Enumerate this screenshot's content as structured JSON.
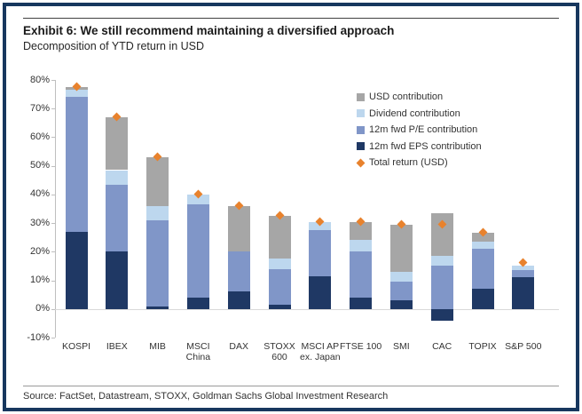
{
  "header": {
    "title": "Exhibit 6: We still recommend maintaining a diversified approach",
    "subtitle": "Decomposition of YTD return in USD"
  },
  "footer": {
    "source": "Source: FactSet, Datastream, STOXX, Goldman Sachs Global Investment Research"
  },
  "colors": {
    "frame_border": "#17375e",
    "usd_contribution": "#a6a6a6",
    "dividend_contribution": "#bdd7ee",
    "pe_contribution": "#8096c8",
    "eps_contribution": "#1f3864",
    "total_marker": "#e8822d",
    "axis_line": "#bfbfbf",
    "zero_line": "#d9d9d9"
  },
  "legend": {
    "items": [
      {
        "label": "USD contribution",
        "color": "#a6a6a6",
        "shape": "square"
      },
      {
        "label": "Dividend contribution",
        "color": "#bdd7ee",
        "shape": "square"
      },
      {
        "label": "12m fwd P/E contribution",
        "color": "#8096c8",
        "shape": "square"
      },
      {
        "label": "12m fwd EPS contribution",
        "color": "#1f3864",
        "shape": "square"
      },
      {
        "label": "Total return (USD)",
        "color": "#e8822d",
        "shape": "diamond"
      }
    ]
  },
  "chart_data": {
    "type": "bar",
    "stacked": true,
    "title": "Decomposition of YTD return in USD",
    "xlabel": "",
    "ylabel": "",
    "ylim": [
      -10,
      80
    ],
    "grid": false,
    "legend_position": "upper-right",
    "categories": [
      "KOSPI",
      "IBEX",
      "MIB",
      "MSCI\nChina",
      "DAX",
      "STOXX\n600",
      "MSCI AP\nex. Japan",
      "FTSE 100",
      "SMI",
      "CAC",
      "TOPIX",
      "S&P 500"
    ],
    "series": [
      {
        "name": "12m fwd EPS contribution",
        "color": "#1f3864",
        "values": [
          27,
          20,
          1,
          4,
          6,
          1.5,
          11.5,
          4,
          3,
          -4,
          7,
          11
        ]
      },
      {
        "name": "12m fwd P/E contribution",
        "color": "#8096c8",
        "values": [
          47,
          23.5,
          30,
          32.5,
          14,
          12.5,
          16,
          16,
          6.5,
          15,
          14,
          2.5
        ]
      },
      {
        "name": "Dividend contribution",
        "color": "#bdd7ee",
        "values": [
          2.5,
          5,
          5,
          3.5,
          0,
          3.5,
          3,
          4,
          3.5,
          3.5,
          2.5,
          1.5
        ]
      },
      {
        "name": "USD contribution",
        "color": "#a6a6a6",
        "values": [
          1,
          18.5,
          17,
          0,
          16,
          15,
          0,
          6.5,
          16.5,
          15,
          3,
          0
        ]
      }
    ],
    "totals": {
      "name": "Total return (USD)",
      "color": "#e8822d",
      "values": [
        77.5,
        67,
        53,
        40,
        36,
        32.5,
        30.5,
        30.5,
        29.5,
        29.5,
        26.5,
        16
      ]
    },
    "y_axis": {
      "min": -10,
      "max": 80,
      "step": 10,
      "suffix": "%",
      "tick_labels": [
        "80%",
        "70%",
        "60%",
        "50%",
        "40%",
        "30%",
        "20%",
        "10%",
        "0%",
        "-10%"
      ]
    }
  }
}
